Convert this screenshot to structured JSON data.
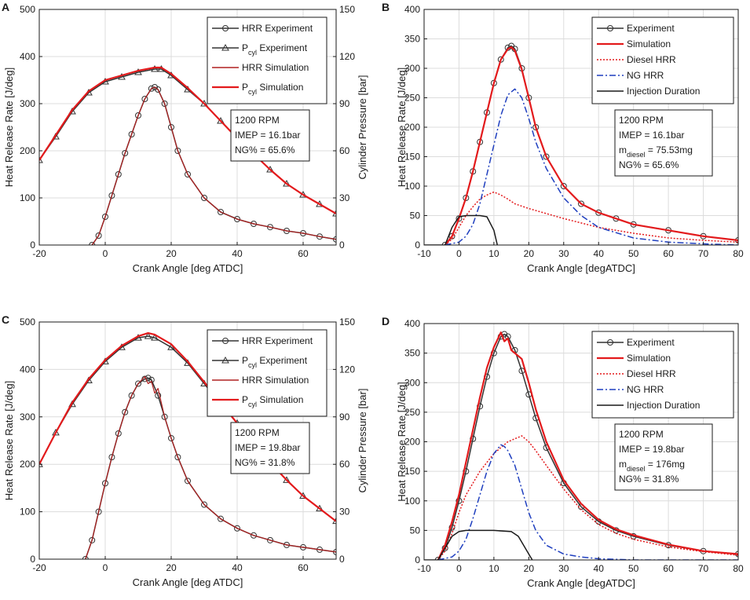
{
  "figure": {
    "panel_letters": [
      "A",
      "B",
      "C",
      "D"
    ]
  },
  "chart_data": [
    {
      "panel": "A",
      "type": "line",
      "xlabel": "Crank Angle [deg ATDC]",
      "ylabel": "Heat Release Rate [J/deg]",
      "y2label": "Cylinder Pressure [bar]",
      "xlim": [
        -20,
        70
      ],
      "ylim": [
        0,
        500
      ],
      "y2lim": [
        0,
        150
      ],
      "xticks": [
        -20,
        0,
        20,
        40,
        60
      ],
      "yticks": [
        0,
        100,
        200,
        300,
        400,
        500
      ],
      "y2ticks": [
        0,
        30,
        60,
        90,
        120,
        150
      ],
      "legend": [
        "HRR Experiment",
        "P",
        "cyl",
        " Experiment",
        "HRR Simulation",
        "P",
        "cyl",
        " Simulation"
      ],
      "annotation": [
        "1200 RPM",
        "IMEP = 16.1bar",
        "NG% = 65.6%"
      ],
      "series": [
        {
          "name": "HRR Experiment",
          "axis": "left",
          "color": "#333333",
          "marker": "circle",
          "x": [
            -4,
            -2,
            0,
            2,
            4,
            6,
            8,
            10,
            12,
            14,
            15,
            16,
            18,
            20,
            22,
            25,
            30,
            35,
            40,
            45,
            50,
            55,
            60,
            65,
            70
          ],
          "y": [
            0,
            20,
            60,
            105,
            150,
            195,
            235,
            275,
            310,
            332,
            335,
            330,
            300,
            250,
            200,
            150,
            100,
            70,
            55,
            45,
            38,
            30,
            25,
            18,
            12
          ]
        },
        {
          "name": "Pcyl Experiment",
          "axis": "right",
          "color": "#333333",
          "marker": "triangle",
          "x": [
            -20,
            -15,
            -10,
            -5,
            0,
            5,
            10,
            15,
            17,
            20,
            25,
            30,
            35,
            40,
            45,
            50,
            55,
            60,
            65,
            70
          ],
          "y": [
            54,
            69,
            85,
            97,
            104,
            107,
            110,
            112,
            112,
            108,
            99,
            90,
            79,
            68,
            58,
            48,
            39,
            32,
            26,
            20
          ]
        },
        {
          "name": "HRR Simulation",
          "axis": "left",
          "color": "#b02020",
          "marker": "none",
          "x": [
            -4,
            -2,
            0,
            2,
            4,
            6,
            8,
            10,
            12,
            14,
            15,
            16,
            18,
            20,
            22,
            25,
            30,
            35,
            40,
            45,
            50,
            55,
            60,
            65,
            70
          ],
          "y": [
            0,
            20,
            60,
            105,
            150,
            195,
            235,
            275,
            310,
            332,
            335,
            330,
            300,
            250,
            200,
            150,
            100,
            70,
            55,
            45,
            38,
            30,
            25,
            18,
            12
          ]
        },
        {
          "name": "Pcyl Simulation",
          "axis": "right",
          "color": "#e31a1c",
          "marker": "none",
          "x": [
            -20,
            -15,
            -10,
            -5,
            0,
            5,
            10,
            15,
            17,
            20,
            25,
            30,
            35,
            40,
            45,
            50,
            55,
            60,
            65,
            70
          ],
          "y": [
            54,
            70,
            86,
            98,
            105,
            108,
            111,
            113,
            113,
            109,
            100,
            90,
            79,
            68,
            58,
            48,
            39,
            32,
            26,
            20
          ]
        }
      ]
    },
    {
      "panel": "B",
      "type": "line",
      "xlabel": "Crank Angle [degATDC]",
      "ylabel": "Heat Release Rate [J/deg]",
      "xlim": [
        -10,
        80
      ],
      "ylim": [
        0,
        400
      ],
      "xticks": [
        -10,
        0,
        10,
        20,
        30,
        40,
        50,
        60,
        70,
        80
      ],
      "yticks": [
        0,
        50,
        100,
        150,
        200,
        250,
        300,
        350,
        400
      ],
      "legend": [
        "Experiment",
        "Simulation",
        "Diesel HRR",
        "NG HRR",
        "Injection Duration"
      ],
      "annotation": [
        "1200 RPM",
        "IMEP = 16.1bar",
        "m",
        "diesel",
        " = 75.53mg",
        "NG% = 65.6%"
      ],
      "series": [
        {
          "name": "Experiment",
          "color": "#333333",
          "marker": "circle",
          "x": [
            -4,
            -2,
            0,
            2,
            4,
            6,
            8,
            10,
            12,
            14,
            15,
            16,
            18,
            20,
            22,
            25,
            30,
            35,
            40,
            45,
            50,
            60,
            70,
            80
          ],
          "y": [
            0,
            15,
            45,
            80,
            125,
            175,
            225,
            275,
            315,
            335,
            338,
            333,
            300,
            250,
            200,
            150,
            100,
            70,
            55,
            45,
            35,
            25,
            15,
            8
          ]
        },
        {
          "name": "Simulation",
          "color": "#e31a1c",
          "marker": "none",
          "x": [
            -4,
            -2,
            0,
            2,
            4,
            6,
            8,
            10,
            12,
            14,
            15,
            16,
            18,
            20,
            22,
            25,
            30,
            35,
            40,
            45,
            50,
            60,
            70,
            80
          ],
          "y": [
            0,
            15,
            45,
            80,
            125,
            175,
            225,
            275,
            315,
            333,
            336,
            330,
            298,
            250,
            200,
            150,
            100,
            70,
            55,
            45,
            35,
            25,
            15,
            8
          ]
        },
        {
          "name": "Diesel HRR",
          "color": "#e31a1c",
          "dash": "2,2",
          "marker": "none",
          "x": [
            -4,
            -2,
            0,
            2,
            4,
            6,
            8,
            10,
            12,
            14,
            16,
            20,
            30,
            40,
            50,
            60,
            70,
            80
          ],
          "y": [
            0,
            10,
            30,
            50,
            65,
            78,
            85,
            90,
            85,
            78,
            70,
            62,
            45,
            30,
            20,
            12,
            8,
            5
          ]
        },
        {
          "name": "NG HRR",
          "color": "#1f3fbf",
          "dash": "8,3,2,3",
          "marker": "none",
          "x": [
            -4,
            0,
            2,
            4,
            6,
            8,
            10,
            12,
            14,
            16,
            18,
            20,
            22,
            25,
            30,
            35,
            40,
            50,
            60,
            70,
            80
          ],
          "y": [
            0,
            5,
            15,
            35,
            70,
            120,
            170,
            220,
            255,
            265,
            250,
            215,
            175,
            130,
            80,
            50,
            30,
            12,
            5,
            2,
            0
          ]
        },
        {
          "name": "Injection Duration",
          "color": "#1a1a1a",
          "marker": "none",
          "x": [
            -10,
            -4,
            -2,
            0,
            2,
            4,
            6,
            8,
            10,
            11
          ],
          "y": [
            0,
            0,
            30,
            48,
            50,
            50,
            50,
            48,
            25,
            0
          ]
        }
      ]
    },
    {
      "panel": "C",
      "type": "line",
      "xlabel": "Crank Angle [deg ATDC]",
      "ylabel": "Heat Release Rate [J/deg]",
      "y2label": "Cylinder Pressure [bar]",
      "xlim": [
        -20,
        70
      ],
      "ylim": [
        0,
        500
      ],
      "y2lim": [
        0,
        150
      ],
      "xticks": [
        -20,
        0,
        20,
        40,
        60
      ],
      "yticks": [
        0,
        100,
        200,
        300,
        400,
        500
      ],
      "y2ticks": [
        0,
        30,
        60,
        90,
        120,
        150
      ],
      "legend": [
        "HRR Experiment",
        "P",
        "cyl",
        " Experiment",
        "HRR Simulation",
        "P",
        "cyl",
        " Simulation"
      ],
      "annotation": [
        "1200 RPM",
        "IMEP = 19.8bar",
        "NG% = 31.8%"
      ],
      "series": [
        {
          "name": "HRR Experiment",
          "axis": "left",
          "color": "#333333",
          "marker": "circle",
          "x": [
            -6,
            -4,
            -2,
            0,
            2,
            4,
            6,
            8,
            10,
            12,
            13,
            14,
            16,
            18,
            20,
            22,
            25,
            30,
            35,
            40,
            45,
            50,
            55,
            60,
            65,
            70
          ],
          "y": [
            0,
            40,
            100,
            160,
            215,
            265,
            310,
            345,
            370,
            380,
            382,
            378,
            345,
            300,
            255,
            215,
            165,
            115,
            85,
            65,
            50,
            40,
            30,
            25,
            20,
            15
          ]
        },
        {
          "name": "Pcyl Experiment",
          "axis": "right",
          "color": "#333333",
          "marker": "triangle",
          "x": [
            -20,
            -15,
            -10,
            -5,
            0,
            5,
            10,
            13,
            15,
            20,
            25,
            30,
            35,
            40,
            45,
            50,
            55,
            60,
            65,
            70
          ],
          "y": [
            60,
            80,
            98,
            113,
            125,
            134,
            140,
            141,
            140,
            134,
            124,
            111,
            98,
            86,
            73,
            61,
            50,
            40,
            32,
            24
          ]
        },
        {
          "name": "HRR Simulation",
          "axis": "left",
          "color": "#b02020",
          "marker": "none",
          "x": [
            -6,
            -4,
            -2,
            0,
            2,
            4,
            6,
            8,
            10,
            12,
            13,
            14,
            15,
            16,
            17,
            18,
            20,
            22,
            25,
            30,
            35,
            40,
            45,
            50,
            55,
            60,
            65,
            70
          ],
          "y": [
            0,
            40,
            100,
            160,
            215,
            265,
            310,
            345,
            370,
            385,
            370,
            375,
            350,
            360,
            330,
            300,
            255,
            215,
            165,
            115,
            85,
            65,
            50,
            40,
            30,
            25,
            20,
            15
          ]
        },
        {
          "name": "Pcyl Simulation",
          "axis": "right",
          "color": "#e31a1c",
          "marker": "none",
          "x": [
            -20,
            -15,
            -10,
            -5,
            0,
            5,
            10,
            13,
            15,
            20,
            25,
            30,
            35,
            40,
            45,
            50,
            55,
            60,
            65,
            70
          ],
          "y": [
            60,
            80,
            99,
            114,
            126,
            135,
            141,
            143,
            142,
            136,
            125,
            112,
            99,
            86,
            73,
            61,
            50,
            40,
            32,
            24
          ]
        }
      ]
    },
    {
      "panel": "D",
      "type": "line",
      "xlabel": "Crank Angle [degATDC]",
      "ylabel": "Heat Release Rate [J/deg]",
      "xlim": [
        -10,
        80
      ],
      "ylim": [
        0,
        400
      ],
      "xticks": [
        -10,
        0,
        10,
        20,
        30,
        40,
        50,
        60,
        70,
        80
      ],
      "yticks": [
        0,
        50,
        100,
        150,
        200,
        250,
        300,
        350,
        400
      ],
      "legend": [
        "Experiment",
        "Simulation",
        "Diesel HRR",
        "NG HRR",
        "Injection Duration"
      ],
      "annotation": [
        "1200 RPM",
        "IMEP = 19.8bar",
        "m",
        "diesel",
        " = 176mg",
        "NG% = 31.8%"
      ],
      "series": [
        {
          "name": "Experiment",
          "color": "#333333",
          "marker": "circle",
          "x": [
            -6,
            -4,
            -2,
            0,
            2,
            4,
            6,
            8,
            10,
            12,
            13,
            14,
            16,
            18,
            20,
            22,
            25,
            30,
            35,
            40,
            45,
            50,
            60,
            70,
            80
          ],
          "y": [
            0,
            20,
            55,
            100,
            150,
            205,
            260,
            310,
            350,
            378,
            382,
            378,
            355,
            320,
            280,
            240,
            190,
            130,
            90,
            65,
            50,
            40,
            25,
            15,
            10
          ]
        },
        {
          "name": "Simulation",
          "color": "#e31a1c",
          "marker": "none",
          "x": [
            -6,
            -4,
            -2,
            0,
            2,
            4,
            6,
            8,
            10,
            12,
            13,
            14,
            15,
            16,
            18,
            20,
            22,
            25,
            30,
            35,
            40,
            45,
            50,
            60,
            70,
            80
          ],
          "y": [
            0,
            25,
            65,
            110,
            165,
            220,
            275,
            325,
            360,
            385,
            370,
            375,
            355,
            350,
            340,
            300,
            255,
            200,
            135,
            95,
            68,
            52,
            42,
            26,
            15,
            10
          ]
        },
        {
          "name": "Diesel HRR",
          "color": "#e31a1c",
          "dash": "2,2",
          "marker": "none",
          "x": [
            -6,
            -4,
            -2,
            0,
            2,
            4,
            6,
            8,
            10,
            12,
            14,
            16,
            18,
            20,
            22,
            25,
            30,
            35,
            40,
            45,
            50,
            60,
            70,
            80
          ],
          "y": [
            0,
            15,
            45,
            80,
            110,
            130,
            150,
            165,
            180,
            190,
            200,
            205,
            210,
            200,
            185,
            160,
            120,
            85,
            60,
            45,
            35,
            22,
            14,
            8
          ]
        },
        {
          "name": "NG HRR",
          "color": "#1f3fbf",
          "dash": "8,3,2,3",
          "marker": "none",
          "x": [
            -6,
            -2,
            0,
            2,
            4,
            6,
            8,
            10,
            12,
            13,
            14,
            16,
            18,
            20,
            22,
            25,
            30,
            35,
            40,
            50,
            60,
            70,
            80
          ],
          "y": [
            0,
            5,
            15,
            35,
            70,
            110,
            150,
            180,
            195,
            192,
            185,
            160,
            120,
            80,
            50,
            25,
            10,
            5,
            2,
            0,
            0,
            0,
            0
          ]
        },
        {
          "name": "Injection Duration",
          "color": "#1a1a1a",
          "marker": "none",
          "x": [
            -10,
            -6,
            -4,
            -2,
            0,
            2,
            5,
            10,
            15,
            17,
            19,
            20,
            21
          ],
          "y": [
            0,
            0,
            20,
            40,
            48,
            50,
            50,
            50,
            48,
            40,
            20,
            10,
            0
          ]
        }
      ]
    }
  ]
}
